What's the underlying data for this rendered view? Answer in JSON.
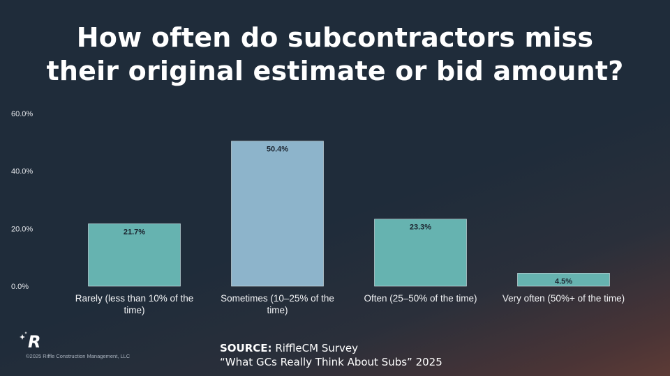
{
  "title_line1": "How often do subcontractors miss",
  "title_line2": "their original estimate or bid amount?",
  "chart_data": {
    "type": "bar",
    "categories": [
      [
        "Rarely (less than 10% of the",
        "time)"
      ],
      [
        "Sometimes (10–25% of the",
        "time)"
      ],
      [
        "Often (25–50% of the time)"
      ],
      [
        "Very often (50%+ of the time)"
      ]
    ],
    "values": [
      21.7,
      50.4,
      23.3,
      4.5
    ],
    "data_labels": [
      "21.7%",
      "50.4%",
      "23.3%",
      "4.5%"
    ],
    "ylim": [
      0,
      60
    ],
    "yticks": [
      "0.0%",
      "20.0%",
      "40.0%",
      "60.0%"
    ],
    "ytick_values": [
      0,
      20,
      40,
      60
    ],
    "bar_colors": [
      "#66b3b0",
      "#8db4cb",
      "#66b3b0",
      "#66b3b0"
    ],
    "grid": false,
    "xlabel": "",
    "ylabel": ""
  },
  "footer": {
    "source_label": "SOURCE:",
    "source_text": " RiffleCM Survey",
    "source_line2": "“What GCs Really Think About Subs” 2025",
    "copyright": "©2025 Riffle Construction Management, LLC",
    "logo_letter": "R"
  }
}
